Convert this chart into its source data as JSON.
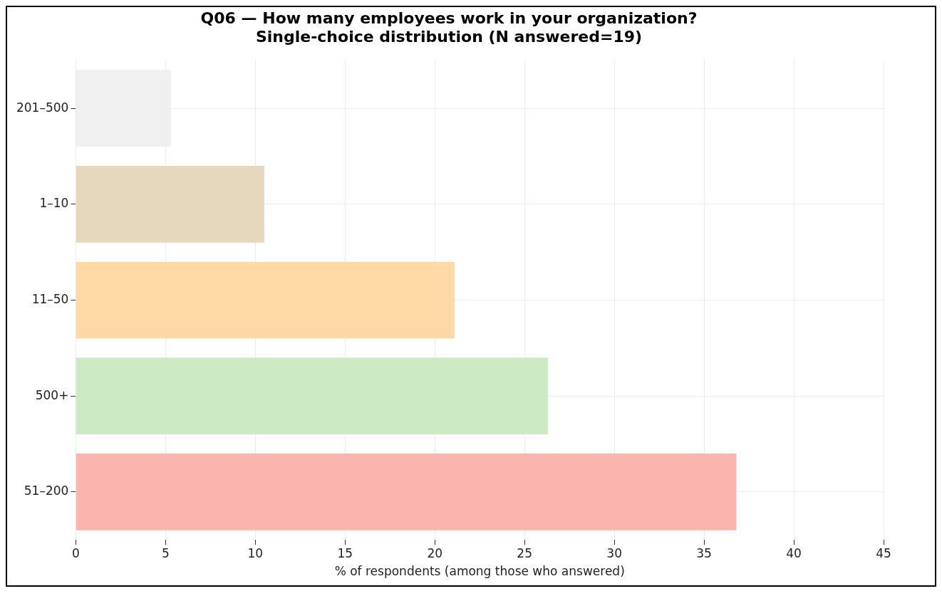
{
  "chart_data": {
    "type": "bar",
    "orientation": "horizontal",
    "title": "Q06 — How many employees work in your organization?\nSingle-choice distribution (N answered=19)",
    "xlabel": "% of respondents (among those who answered)",
    "categories": [
      "201–500",
      "1–10",
      "11–50",
      "500+",
      "51–200"
    ],
    "values": [
      5.3,
      10.5,
      21.1,
      26.3,
      36.8
    ],
    "colors": [
      "#f0f0f0",
      "#e5d8bd",
      "#fed9a6",
      "#ccebc5",
      "#fbb4ae"
    ],
    "xlim": [
      0,
      45
    ],
    "xticks": [
      0,
      5,
      10,
      15,
      20,
      25,
      30,
      35,
      40,
      45
    ],
    "grid": true,
    "legend": false
  }
}
